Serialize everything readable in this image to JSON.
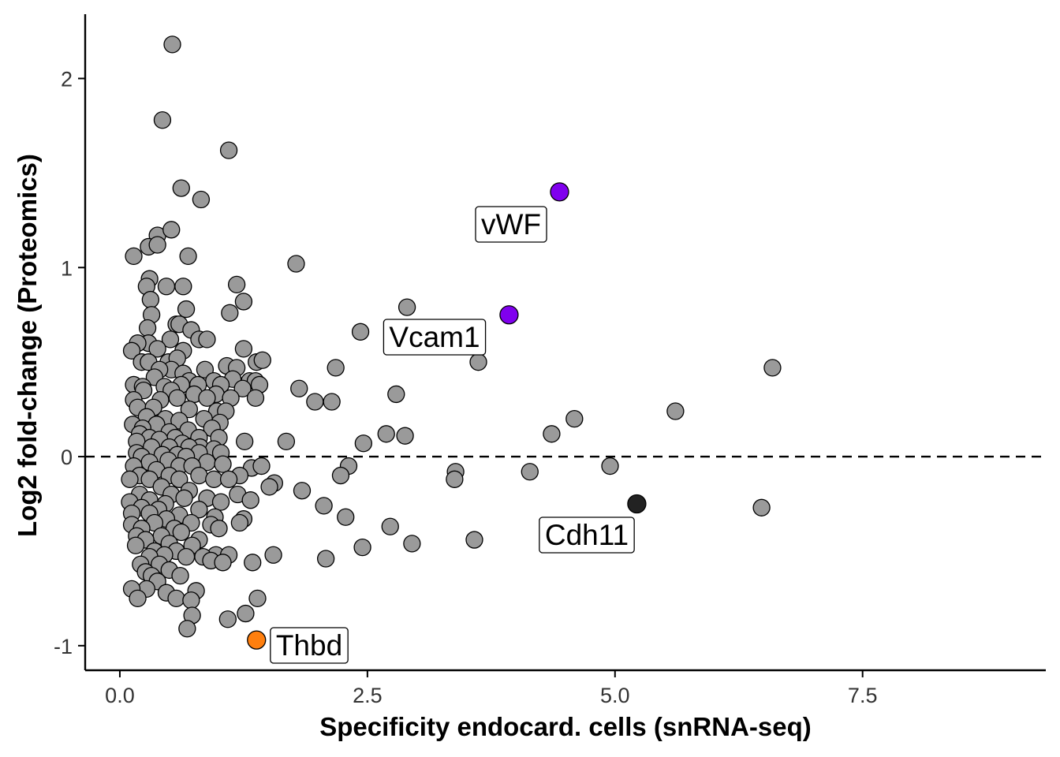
{
  "chart_data": {
    "type": "scatter",
    "title": "",
    "xlabel": "Specificity endocard. cells (snRNA-seq)",
    "ylabel": "Log2 fold-change (Proteomics)",
    "xlim": [
      -0.35,
      9.35
    ],
    "ylim": [
      -1.13,
      2.34
    ],
    "xticks": [
      0.0,
      2.5,
      5.0,
      7.5
    ],
    "xtick_labels": [
      "0.0",
      "2.5",
      "5.0",
      "7.5"
    ],
    "yticks": [
      -1,
      0,
      1,
      2
    ],
    "ytick_labels": [
      "-1",
      "0",
      "1",
      "2"
    ],
    "reference_line": {
      "y": 0,
      "style": "dashed"
    },
    "colors": {
      "background_point": "#9a9a9a",
      "highlight_purple": "#8000ee",
      "highlight_orange": "#ff7f0e",
      "highlight_black": "#222222"
    },
    "background_points": [
      [
        0.53,
        2.18
      ],
      [
        0.43,
        1.78
      ],
      [
        1.1,
        1.62
      ],
      [
        0.62,
        1.42
      ],
      [
        0.82,
        1.36
      ],
      [
        0.38,
        1.17
      ],
      [
        0.52,
        1.2
      ],
      [
        0.29,
        1.11
      ],
      [
        0.38,
        1.12
      ],
      [
        0.14,
        1.06
      ],
      [
        0.69,
        1.06
      ],
      [
        1.78,
        1.02
      ],
      [
        0.3,
        0.94
      ],
      [
        0.47,
        0.9
      ],
      [
        0.27,
        0.9
      ],
      [
        0.64,
        0.9
      ],
      [
        1.18,
        0.91
      ],
      [
        0.31,
        0.83
      ],
      [
        1.25,
        0.82
      ],
      [
        0.67,
        0.78
      ],
      [
        2.9,
        0.79
      ],
      [
        1.11,
        0.76
      ],
      [
        0.32,
        0.75
      ],
      [
        0.28,
        0.68
      ],
      [
        0.57,
        0.7
      ],
      [
        0.6,
        0.7
      ],
      [
        0.72,
        0.67
      ],
      [
        2.43,
        0.66
      ],
      [
        0.29,
        0.6
      ],
      [
        0.18,
        0.6
      ],
      [
        0.8,
        0.62
      ],
      [
        0.88,
        0.62
      ],
      [
        0.51,
        0.62
      ],
      [
        0.12,
        0.56
      ],
      [
        0.38,
        0.57
      ],
      [
        0.64,
        0.56
      ],
      [
        1.25,
        0.57
      ],
      [
        1.38,
        0.5
      ],
      [
        1.44,
        0.51
      ],
      [
        3.62,
        0.5
      ],
      [
        0.22,
        0.5
      ],
      [
        0.49,
        0.5
      ],
      [
        0.29,
        0.5
      ],
      [
        0.58,
        0.52
      ],
      [
        1.08,
        0.48
      ],
      [
        0.86,
        0.46
      ],
      [
        0.52,
        0.46
      ],
      [
        1.18,
        0.47
      ],
      [
        0.4,
        0.46
      ],
      [
        2.18,
        0.47
      ],
      [
        6.59,
        0.47
      ],
      [
        0.64,
        0.44
      ],
      [
        0.35,
        0.42
      ],
      [
        0.7,
        0.4
      ],
      [
        0.95,
        0.4
      ],
      [
        1.14,
        0.41
      ],
      [
        1.31,
        0.4
      ],
      [
        1.37,
        0.4
      ],
      [
        0.14,
        0.38
      ],
      [
        0.23,
        0.37
      ],
      [
        0.45,
        0.37
      ],
      [
        0.62,
        0.38
      ],
      [
        0.79,
        0.38
      ],
      [
        1.02,
        0.38
      ],
      [
        1.41,
        0.38
      ],
      [
        1.81,
        0.36
      ],
      [
        0.24,
        0.35
      ],
      [
        0.52,
        0.35
      ],
      [
        0.75,
        0.33
      ],
      [
        0.97,
        0.33
      ],
      [
        1.24,
        0.36
      ],
      [
        2.79,
        0.33
      ],
      [
        0.41,
        0.3
      ],
      [
        0.14,
        0.3
      ],
      [
        0.58,
        0.31
      ],
      [
        0.88,
        0.31
      ],
      [
        1.12,
        0.31
      ],
      [
        1.37,
        0.31
      ],
      [
        1.97,
        0.29
      ],
      [
        2.14,
        0.29
      ],
      [
        0.18,
        0.26
      ],
      [
        0.34,
        0.26
      ],
      [
        0.7,
        0.25
      ],
      [
        0.98,
        0.24
      ],
      [
        1.07,
        0.24
      ],
      [
        5.61,
        0.24
      ],
      [
        0.27,
        0.21
      ],
      [
        0.46,
        0.2
      ],
      [
        0.85,
        0.2
      ],
      [
        0.6,
        0.19
      ],
      [
        1.01,
        0.18
      ],
      [
        4.59,
        0.2
      ],
      [
        0.13,
        0.17
      ],
      [
        0.37,
        0.17
      ],
      [
        0.23,
        0.15
      ],
      [
        0.5,
        0.13
      ],
      [
        0.69,
        0.14
      ],
      [
        0.93,
        0.15
      ],
      [
        0.2,
        0.12
      ],
      [
        0.3,
        0.1
      ],
      [
        0.56,
        0.1
      ],
      [
        0.8,
        0.1
      ],
      [
        1.0,
        0.1
      ],
      [
        2.69,
        0.12
      ],
      [
        2.88,
        0.11
      ],
      [
        4.36,
        0.12
      ],
      [
        0.4,
        0.09
      ],
      [
        0.17,
        0.08
      ],
      [
        0.63,
        0.07
      ],
      [
        0.81,
        0.05
      ],
      [
        1.26,
        0.08
      ],
      [
        1.68,
        0.08
      ],
      [
        2.46,
        0.07
      ],
      [
        0.32,
        0.05
      ],
      [
        0.5,
        0.05
      ],
      [
        0.7,
        0.05
      ],
      [
        0.95,
        0.04
      ],
      [
        0.17,
        0.02
      ],
      [
        0.43,
        0.01
      ],
      [
        0.58,
        0.01
      ],
      [
        0.8,
        0.02
      ],
      [
        1.02,
        0.02
      ],
      [
        0.22,
        0.0
      ],
      [
        0.67,
        0.0
      ],
      [
        0.49,
        -0.02
      ],
      [
        0.3,
        -0.03
      ],
      [
        0.14,
        -0.05
      ],
      [
        0.88,
        -0.03
      ],
      [
        1.04,
        -0.04
      ],
      [
        0.6,
        -0.05
      ],
      [
        0.37,
        -0.07
      ],
      [
        0.73,
        -0.05
      ],
      [
        2.31,
        -0.05
      ],
      [
        4.95,
        -0.05
      ],
      [
        1.33,
        -0.06
      ],
      [
        1.43,
        -0.05
      ],
      [
        0.2,
        -0.1
      ],
      [
        0.5,
        -0.1
      ],
      [
        0.8,
        -0.1
      ],
      [
        1.21,
        -0.1
      ],
      [
        2.23,
        -0.1
      ],
      [
        3.39,
        -0.08
      ],
      [
        4.14,
        -0.08
      ],
      [
        0.1,
        -0.12
      ],
      [
        0.3,
        -0.12
      ],
      [
        0.6,
        -0.12
      ],
      [
        0.95,
        -0.12
      ],
      [
        1.1,
        -0.12
      ],
      [
        3.38,
        -0.12
      ],
      [
        1.56,
        -0.14
      ],
      [
        1.51,
        -0.16
      ],
      [
        0.42,
        -0.16
      ],
      [
        0.7,
        -0.18
      ],
      [
        0.2,
        -0.2
      ],
      [
        0.52,
        -0.2
      ],
      [
        1.19,
        -0.2
      ],
      [
        1.84,
        -0.18
      ],
      [
        0.88,
        -0.22
      ],
      [
        0.1,
        -0.24
      ],
      [
        0.3,
        -0.23
      ],
      [
        0.65,
        -0.22
      ],
      [
        1.32,
        -0.23
      ],
      [
        0.46,
        -0.25
      ],
      [
        1.02,
        -0.24
      ],
      [
        0.22,
        -0.27
      ],
      [
        0.39,
        -0.28
      ],
      [
        0.8,
        -0.28
      ],
      [
        2.06,
        -0.26
      ],
      [
        6.48,
        -0.27
      ],
      [
        0.12,
        -0.3
      ],
      [
        0.3,
        -0.3
      ],
      [
        0.6,
        -0.31
      ],
      [
        0.96,
        -0.32
      ],
      [
        1.25,
        -0.33
      ],
      [
        0.47,
        -0.33
      ],
      [
        2.28,
        -0.32
      ],
      [
        0.12,
        -0.36
      ],
      [
        0.35,
        -0.35
      ],
      [
        0.72,
        -0.35
      ],
      [
        0.92,
        -0.36
      ],
      [
        1.21,
        -0.35
      ],
      [
        0.22,
        -0.38
      ],
      [
        0.55,
        -0.38
      ],
      [
        1.0,
        -0.38
      ],
      [
        2.73,
        -0.37
      ],
      [
        0.17,
        -0.42
      ],
      [
        0.42,
        -0.42
      ],
      [
        0.62,
        -0.4
      ],
      [
        0.8,
        -0.44
      ],
      [
        0.26,
        -0.44
      ],
      [
        0.5,
        -0.46
      ],
      [
        0.16,
        -0.47
      ],
      [
        0.73,
        -0.47
      ],
      [
        2.95,
        -0.46
      ],
      [
        2.45,
        -0.48
      ],
      [
        3.58,
        -0.44
      ],
      [
        0.35,
        -0.5
      ],
      [
        0.57,
        -0.5
      ],
      [
        0.97,
        -0.52
      ],
      [
        1.1,
        -0.52
      ],
      [
        0.45,
        -0.52
      ],
      [
        1.55,
        -0.52
      ],
      [
        0.3,
        -0.53
      ],
      [
        0.84,
        -0.53
      ],
      [
        0.67,
        -0.53
      ],
      [
        2.08,
        -0.54
      ],
      [
        0.92,
        -0.55
      ],
      [
        0.21,
        -0.57
      ],
      [
        0.4,
        -0.57
      ],
      [
        1.04,
        -0.56
      ],
      [
        1.34,
        -0.56
      ],
      [
        0.26,
        -0.61
      ],
      [
        0.5,
        -0.6
      ],
      [
        0.32,
        -0.63
      ],
      [
        0.61,
        -0.63
      ],
      [
        0.38,
        -0.66
      ],
      [
        0.27,
        -0.7
      ],
      [
        0.12,
        -0.7
      ],
      [
        0.47,
        -0.72
      ],
      [
        0.77,
        -0.71
      ],
      [
        0.57,
        -0.75
      ],
      [
        0.18,
        -0.75
      ],
      [
        0.72,
        -0.76
      ],
      [
        1.39,
        -0.75
      ],
      [
        1.27,
        -0.83
      ],
      [
        0.73,
        -0.84
      ],
      [
        1.09,
        -0.86
      ],
      [
        0.68,
        -0.91
      ]
    ],
    "highlighted": [
      {
        "label": "vWF",
        "x": 4.44,
        "y": 1.4,
        "color": "#8000ee"
      },
      {
        "label": "Vcam1",
        "x": 3.93,
        "y": 0.75,
        "color": "#8000ee"
      },
      {
        "label": "Cdh11",
        "x": 5.22,
        "y": -0.25,
        "color": "#222222"
      },
      {
        "label": "Thbd",
        "x": 1.38,
        "y": -0.97,
        "color": "#ff7f0e"
      }
    ]
  }
}
